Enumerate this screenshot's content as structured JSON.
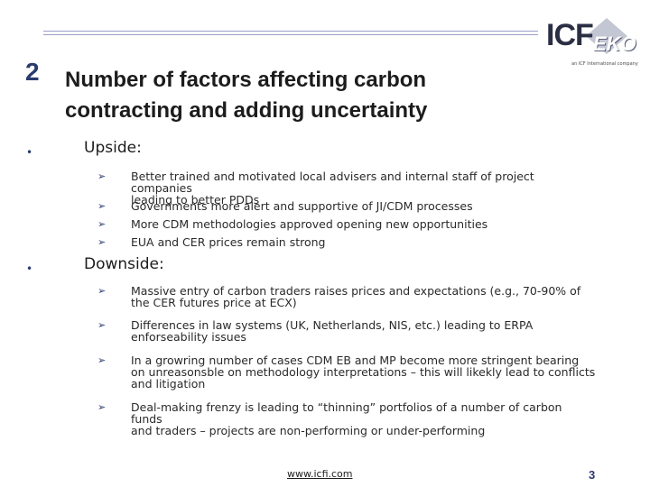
{
  "header": {
    "section_number": "2",
    "title_line1": "Number of factors affecting carbon",
    "title_line2": "contracting and adding uncertainty"
  },
  "logo": {
    "left_text": "ICF",
    "right_text": "EKO",
    "tagline": "an ICF International company"
  },
  "upside": {
    "label": "Upside:",
    "items": [
      {
        "line1": "Better trained and motivated local advisers and internal staff of project companies",
        "line2": "leading to better PDDs"
      },
      {
        "line1": "Governments more alert and supportive of JI/CDM processes"
      },
      {
        "line1": "More CDM methodologies approved opening new opportunities"
      },
      {
        "line1": "EUA and CER prices remain strong"
      }
    ]
  },
  "downside": {
    "label": "Downside:",
    "items": [
      {
        "line1": "Massive entry of carbon traders raises prices and expectations (e.g., 70-90% of",
        "line2": "the CER futures price at ECX)"
      },
      {
        "line1": "Differences in law systems (UK, Netherlands, NIS, etc.) leading to ERPA",
        "line2": "enforseability issues"
      },
      {
        "line1": "In a growring number of cases CDM EB and MP become more stringent bearing",
        "line2": "on unreasonsble on methodology interpretations – this will likekly lead to conflicts",
        "line3": "and litigation"
      },
      {
        "line1": "Deal-making frenzy is leading to “thinning” portfolios of a number of carbon funds",
        "line2": "and traders – projects are non-performing or under-performing"
      }
    ]
  },
  "footer": {
    "url": "www.icfi.com",
    "page_number": "3"
  }
}
